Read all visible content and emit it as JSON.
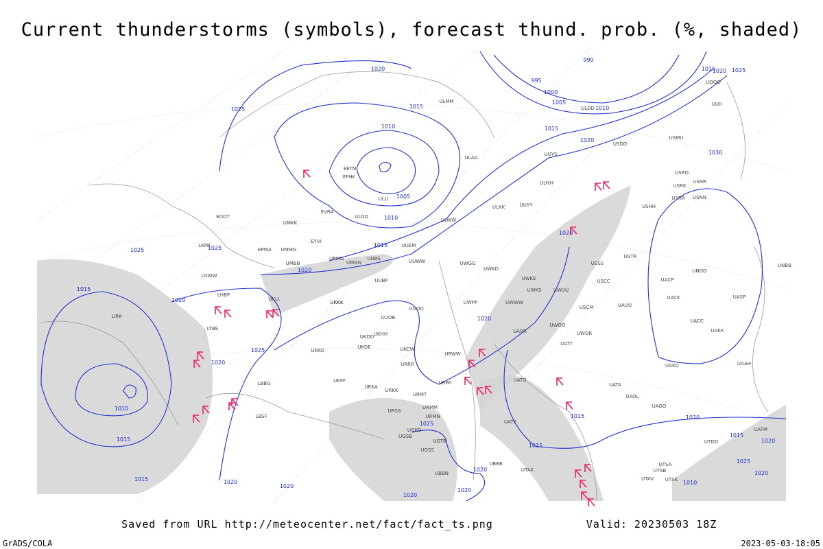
{
  "header": {
    "title": "Current thunderstorms (symbols), forecast thund. prob. (%, shaded)"
  },
  "footer": {
    "source": "Saved from URL http://meteocenter.net/fact/fact_ts.png",
    "valid": "Valid: 20230503 18Z",
    "software": "GrADS/COLA",
    "timestamp": "2023-05-03-18:05"
  },
  "isobar_labels": [
    "1020",
    "990",
    "1015",
    "1020",
    "1025",
    "995",
    "1000",
    "1005",
    "1010",
    "1025",
    "1015",
    "1010",
    "1015",
    "1020",
    "1030",
    "1005",
    "1010",
    "1015",
    "1025",
    "1025",
    "1020",
    "1020",
    "1015",
    "1020",
    "1020",
    "1025",
    "1020",
    "1010",
    "1015",
    "1015",
    "1020",
    "1025",
    "1015",
    "1015",
    "1020",
    "1025",
    "1020",
    "1010",
    "1015",
    "1020",
    "1020",
    "1020",
    "1020",
    "1020"
  ],
  "stations": [
    "ULMM",
    "ULAA",
    "ULLI",
    "ULOO",
    "EVRA",
    "ULWW",
    "UUYS",
    "UUYH",
    "UUYY",
    "ULKK",
    "UUEM",
    "UUWW",
    "UMMS",
    "UMGG",
    "UUBS",
    "UUBP",
    "UMKK",
    "EYVI",
    "UMMG",
    "UMBB",
    "EPWA",
    "LKPR",
    "EDDT",
    "LOWW",
    "LHBP",
    "UKLL",
    "UKKK",
    "LYBE",
    "LIRA",
    "UKKO",
    "UKHH",
    "UKDD",
    "UKDE",
    "UKFF",
    "LBBG",
    "UKCW",
    "URRR",
    "UUOB",
    "UUOO",
    "UWPP",
    "UWWW",
    "UWGG",
    "UWKD",
    "UWKE",
    "UWKS",
    "UWUU",
    "USSS",
    "USCC",
    "USCM",
    "UAUU",
    "UWOO",
    "UWOR",
    "UATT",
    "UARR",
    "URWW",
    "URWI",
    "URMT",
    "URMM",
    "URMN",
    "UGTB",
    "UGSB",
    "UGKO",
    "UGSS",
    "UBBN",
    "UBBB",
    "UTAK",
    "UATE",
    "UATG",
    "UAOL",
    "UATA",
    "UAOO",
    "UAKD",
    "UAAH",
    "UACC",
    "UAKK",
    "UACK",
    "UACP",
    "UNOO",
    "UASP",
    "UNBB",
    "USTR",
    "USHH",
    "USRR",
    "USNN",
    "USRK",
    "USRO",
    "USNR",
    "USMU",
    "USDD",
    "ULDD",
    "UUII",
    "UOOO",
    "UTSA",
    "UTSB",
    "UTAV",
    "UTSK",
    "UTDD",
    "UAFM",
    "URSS",
    "URKA",
    "URKK",
    "LBSF",
    "EETN",
    "EFHK",
    "UKKK"
  ]
}
